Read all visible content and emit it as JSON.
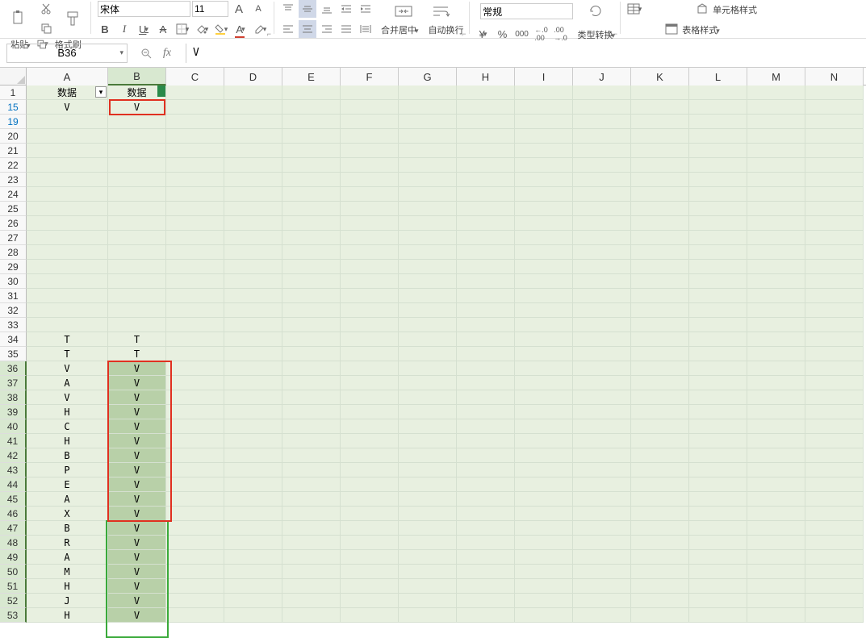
{
  "toolbar": {
    "paste_label": "粘贴",
    "format_painter_label": "格式刷",
    "font_name": "宋体",
    "font_size": "11",
    "merge_center_label": "合并居中",
    "wrap_text_label": "自动换行",
    "number_format": "常规",
    "type_convert_label": "类型转换",
    "table_style_label": "表格样式",
    "cell_style_label": "单元格样式"
  },
  "formula_bar": {
    "name_box": "B36",
    "formula": "V"
  },
  "grid": {
    "col_widths": {
      "rh": 33,
      "A": 101,
      "B": 72,
      "other": 72
    },
    "columns": [
      "A",
      "B",
      "C",
      "D",
      "E",
      "F",
      "G",
      "H",
      "I",
      "J",
      "K",
      "L",
      "M",
      "N"
    ],
    "selected_col": "B",
    "header_row": {
      "num": 1,
      "A": "数据",
      "B": "数据"
    },
    "rows": [
      {
        "num": 15,
        "A": "V",
        "B": "V",
        "filtered": true
      },
      {
        "num": 19,
        "A": "",
        "B": "",
        "filtered": true
      },
      {
        "num": 20,
        "A": "",
        "B": ""
      },
      {
        "num": 21,
        "A": "",
        "B": ""
      },
      {
        "num": 22,
        "A": "",
        "B": ""
      },
      {
        "num": 23,
        "A": "",
        "B": ""
      },
      {
        "num": 24,
        "A": "",
        "B": ""
      },
      {
        "num": 25,
        "A": "",
        "B": ""
      },
      {
        "num": 26,
        "A": "",
        "B": ""
      },
      {
        "num": 27,
        "A": "",
        "B": ""
      },
      {
        "num": 28,
        "A": "",
        "B": ""
      },
      {
        "num": 29,
        "A": "",
        "B": ""
      },
      {
        "num": 30,
        "A": "",
        "B": ""
      },
      {
        "num": 31,
        "A": "",
        "B": ""
      },
      {
        "num": 32,
        "A": "",
        "B": ""
      },
      {
        "num": 33,
        "A": "",
        "B": ""
      },
      {
        "num": 34,
        "A": "T",
        "B": "T"
      },
      {
        "num": 35,
        "A": "T",
        "B": "T"
      },
      {
        "num": 36,
        "A": "V",
        "B": "V",
        "sel": true
      },
      {
        "num": 37,
        "A": "A",
        "B": "V",
        "sel": true
      },
      {
        "num": 38,
        "A": "V",
        "B": "V",
        "sel": true
      },
      {
        "num": 39,
        "A": "H",
        "B": "V",
        "sel": true
      },
      {
        "num": 40,
        "A": "C",
        "B": "V",
        "sel": true
      },
      {
        "num": 41,
        "A": "H",
        "B": "V",
        "sel": true
      },
      {
        "num": 42,
        "A": "B",
        "B": "V",
        "sel": true
      },
      {
        "num": 43,
        "A": "P",
        "B": "V",
        "sel": true
      },
      {
        "num": 44,
        "A": "E",
        "B": "V",
        "sel": true
      },
      {
        "num": 45,
        "A": "A",
        "B": "V",
        "sel": true
      },
      {
        "num": 46,
        "A": "X",
        "B": "V",
        "sel": true
      },
      {
        "num": 47,
        "A": "B",
        "B": "V",
        "sel": true
      },
      {
        "num": 48,
        "A": "R",
        "B": "V",
        "sel": true
      },
      {
        "num": 49,
        "A": "A",
        "B": "V",
        "sel": true
      },
      {
        "num": 50,
        "A": "M",
        "B": "V",
        "sel": true
      },
      {
        "num": 51,
        "A": "H",
        "B": "V",
        "sel": true
      },
      {
        "num": 52,
        "A": "J",
        "B": "V",
        "sel": true
      },
      {
        "num": 53,
        "A": "H",
        "B": "V",
        "sel": true
      }
    ],
    "highlights": {
      "redbox1": {
        "top_row": 15,
        "col": "B",
        "rows": 1
      },
      "redbox2": {
        "top_row": 36,
        "col": "B",
        "rows": 11
      },
      "greenbox": {
        "top_row": 47,
        "col": "B",
        "rows": 8
      },
      "active_cell": "B36"
    }
  },
  "colors": {
    "cell_bg": "#e8f0e0",
    "sel_bg": "#b8d0a8",
    "grid_line": "#d5e0d0",
    "red": "#e03020",
    "green": "#3aaa3a",
    "header_sel": "#d8e8d0"
  }
}
